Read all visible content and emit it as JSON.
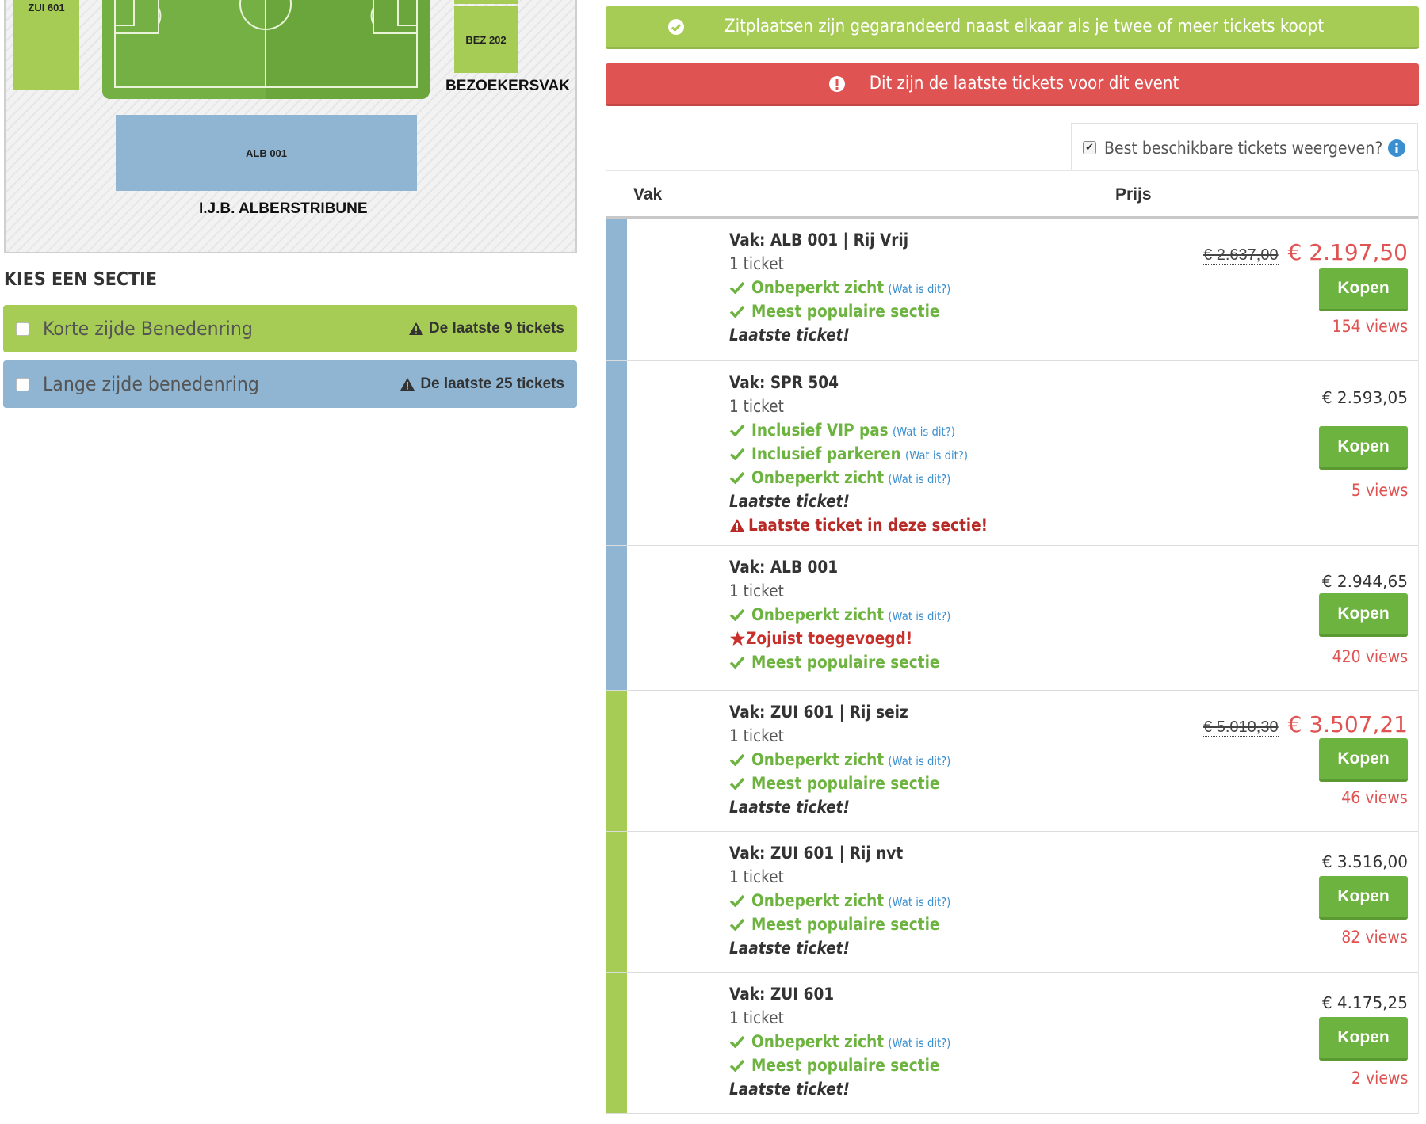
{
  "map": {
    "zui601": "ZUI 601",
    "bez202": "BEZ 202",
    "alb001": "ALB 001",
    "bezoekersvak_label": "BEZOEKERSVAK",
    "alberstribune_label": "I.J.B. ALBERSTRIBUNE"
  },
  "sections": {
    "heading": "KIES EEN SECTIE",
    "items": [
      {
        "name": "Korte zijde Benedenring",
        "warning": "De laatste 9 tickets",
        "color": "#a6cc55"
      },
      {
        "name": "Lange zijde benedenring",
        "warning": "De laatste 25 tickets",
        "color": "#8fb5d3"
      }
    ]
  },
  "alerts": {
    "seating": "Zitplaatsen zijn gegarandeerd naast elkaar als je twee of meer tickets koopt",
    "last": "Dit zijn de laatste tickets voor dit event"
  },
  "best_toggle": {
    "label": "Best beschikbare tickets weergeven?",
    "checked": true
  },
  "table": {
    "col_vak": "Vak",
    "col_prijs": "Prijs",
    "buy_label": "Kopen",
    "what_label": "(Wat is dit?)",
    "rows": [
      {
        "title": "Vak: ALB 001 | Rij Vrij",
        "count": "1 ticket",
        "old_price": "€ 2.637,00",
        "price": "€ 2.197,50",
        "views": "154 views",
        "features": [
          "Onbeperkt zicht",
          "Meest populaire sectie"
        ],
        "last": "Laatste ticket!"
      },
      {
        "title": "Vak: SPR 504",
        "count": "1 ticket",
        "price": "€ 2.593,05",
        "views": "5 views",
        "features": [
          "Inclusief VIP pas",
          "Inclusief parkeren",
          "Onbeperkt zicht"
        ],
        "last": "Laatste ticket!",
        "section_warning": "Laatste ticket in deze sectie!"
      },
      {
        "title": "Vak: ALB 001",
        "count": "1 ticket",
        "price": "€ 2.944,65",
        "views": "420 views",
        "features": [
          "Onbeperkt zicht",
          "Meest populaire sectie"
        ],
        "added": "Zojuist toegevoegd!"
      },
      {
        "title": "Vak: ZUI 601 | Rij seiz",
        "count": "1 ticket",
        "old_price": "€ 5.010,30",
        "price": "€ 3.507,21",
        "views": "46 views",
        "features": [
          "Onbeperkt zicht",
          "Meest populaire sectie"
        ],
        "last": "Laatste ticket!"
      },
      {
        "title": "Vak: ZUI 601 | Rij nvt",
        "count": "1 ticket",
        "price": "€ 3.516,00",
        "views": "82 views",
        "features": [
          "Onbeperkt zicht",
          "Meest populaire sectie"
        ],
        "last": "Laatste ticket!"
      },
      {
        "title": "Vak: ZUI 601",
        "count": "1 ticket",
        "price": "€ 4.175,25",
        "views": "2 views",
        "features": [
          "Onbeperkt zicht",
          "Meest populaire sectie"
        ],
        "last": "Laatste ticket!"
      }
    ]
  },
  "colors": {
    "green": "#a6cc55",
    "blue": "#8fb5d3",
    "red": "#e05353",
    "button_green": "#6db33f",
    "link_blue": "#3a8fd0"
  }
}
